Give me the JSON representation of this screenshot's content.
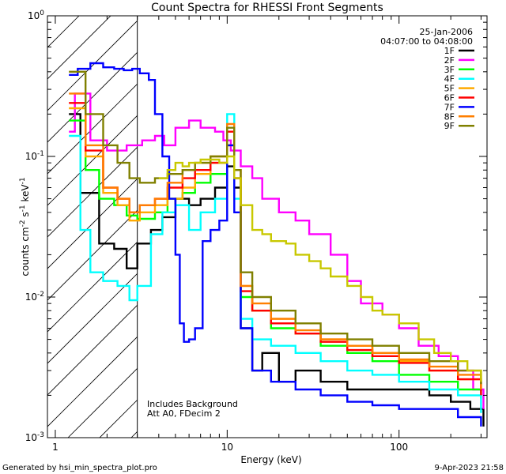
{
  "chart_data": {
    "type": "line",
    "title": "Count Spectra for RHESSI Front Segments",
    "xlabel": "Energy (keV)",
    "ylabel_parts": [
      "counts cm",
      "-2",
      " s",
      "-1",
      " keV",
      "-1"
    ],
    "x_scale": "log",
    "y_scale": "log",
    "xlim": [
      0.9,
      325
    ],
    "ylim": [
      0.001,
      1.0
    ],
    "x_ticks": [
      {
        "value": 1,
        "label": "1"
      },
      {
        "value": 10,
        "label": "10"
      },
      {
        "value": 100,
        "label": "100"
      }
    ],
    "y_ticks": [
      {
        "value": 1,
        "base": "10",
        "exp": "0"
      },
      {
        "value": 0.1,
        "base": "10",
        "exp": "-1"
      },
      {
        "value": 0.01,
        "base": "10",
        "exp": "-2"
      },
      {
        "value": 0.001,
        "base": "10",
        "exp": "-3"
      }
    ],
    "date": "25-Jan-2006",
    "time_range": "04:07:00 to 04:08:00",
    "hatched_region": {
      "x_from": 0.9,
      "x_to": 3.0
    },
    "annotations": [
      "Includes Background",
      "Att A0, FDecim 2"
    ],
    "footer_left": "Generated by hsi_min_spectra_plot.pro",
    "footer_right": "9-Apr-2023 21:58",
    "series": [
      {
        "name": "1F",
        "color": "#000000",
        "points": [
          [
            1.2,
            0.2
          ],
          [
            1.4,
            0.055
          ],
          [
            1.8,
            0.024
          ],
          [
            2.2,
            0.022
          ],
          [
            2.6,
            0.016
          ],
          [
            3.0,
            0.024
          ],
          [
            3.6,
            0.03
          ],
          [
            4.2,
            0.037
          ],
          [
            5.0,
            0.05
          ],
          [
            6.0,
            0.045
          ],
          [
            7.0,
            0.05
          ],
          [
            8.5,
            0.06
          ],
          [
            10.0,
            0.085
          ],
          [
            11.0,
            0.06
          ],
          [
            12.0,
            0.006
          ],
          [
            14.0,
            0.003
          ],
          [
            16.0,
            0.004
          ],
          [
            20.0,
            0.0025
          ],
          [
            25.0,
            0.003
          ],
          [
            35.0,
            0.0025
          ],
          [
            50.0,
            0.0022
          ],
          [
            70.0,
            0.0022
          ],
          [
            100.0,
            0.0022
          ],
          [
            150.0,
            0.002
          ],
          [
            200.0,
            0.0018
          ],
          [
            260.0,
            0.0016
          ],
          [
            310.0,
            0.0012
          ]
        ]
      },
      {
        "name": "2F",
        "color": "#ff00ff",
        "points": [
          [
            1.2,
            0.15
          ],
          [
            1.3,
            0.28
          ],
          [
            1.6,
            0.13
          ],
          [
            2.0,
            0.11
          ],
          [
            2.6,
            0.12
          ],
          [
            3.2,
            0.13
          ],
          [
            3.8,
            0.14
          ],
          [
            4.3,
            0.12
          ],
          [
            5.0,
            0.16
          ],
          [
            6.0,
            0.18
          ],
          [
            7.0,
            0.16
          ],
          [
            8.5,
            0.15
          ],
          [
            9.5,
            0.13
          ],
          [
            10.5,
            0.11
          ],
          [
            12.0,
            0.085
          ],
          [
            14.0,
            0.07
          ],
          [
            16.0,
            0.05
          ],
          [
            20.0,
            0.04
          ],
          [
            25.0,
            0.035
          ],
          [
            30.0,
            0.028
          ],
          [
            40.0,
            0.02
          ],
          [
            50.0,
            0.013
          ],
          [
            60.0,
            0.009
          ],
          [
            80.0,
            0.0075
          ],
          [
            100.0,
            0.006
          ],
          [
            130.0,
            0.0045
          ],
          [
            170.0,
            0.0038
          ],
          [
            220.0,
            0.003
          ],
          [
            270.0,
            0.0022
          ],
          [
            310.0,
            0.0016
          ]
        ]
      },
      {
        "name": "3F",
        "color": "#00ff00",
        "points": [
          [
            1.2,
            0.18
          ],
          [
            1.5,
            0.08
          ],
          [
            1.8,
            0.05
          ],
          [
            2.2,
            0.045
          ],
          [
            2.6,
            0.038
          ],
          [
            3.0,
            0.036
          ],
          [
            3.8,
            0.04
          ],
          [
            4.5,
            0.05
          ],
          [
            5.5,
            0.055
          ],
          [
            6.5,
            0.065
          ],
          [
            8.0,
            0.075
          ],
          [
            10.0,
            0.12
          ],
          [
            11.0,
            0.07
          ],
          [
            12.0,
            0.01
          ],
          [
            14.0,
            0.008
          ],
          [
            18.0,
            0.006
          ],
          [
            25.0,
            0.0055
          ],
          [
            35.0,
            0.0045
          ],
          [
            50.0,
            0.004
          ],
          [
            70.0,
            0.0035
          ],
          [
            100.0,
            0.0028
          ],
          [
            150.0,
            0.0025
          ],
          [
            220.0,
            0.0022
          ],
          [
            300.0,
            0.0019
          ]
        ]
      },
      {
        "name": "4F",
        "color": "#00ffff",
        "points": [
          [
            1.2,
            0.14
          ],
          [
            1.4,
            0.03
          ],
          [
            1.6,
            0.015
          ],
          [
            1.9,
            0.013
          ],
          [
            2.3,
            0.012
          ],
          [
            2.7,
            0.0095
          ],
          [
            3.0,
            0.012
          ],
          [
            3.6,
            0.028
          ],
          [
            4.2,
            0.04
          ],
          [
            5.0,
            0.045
          ],
          [
            6.0,
            0.03
          ],
          [
            7.0,
            0.04
          ],
          [
            8.5,
            0.05
          ],
          [
            10.0,
            0.2
          ],
          [
            11.0,
            0.05
          ],
          [
            12.0,
            0.007
          ],
          [
            14.0,
            0.005
          ],
          [
            18.0,
            0.0045
          ],
          [
            25.0,
            0.004
          ],
          [
            35.0,
            0.0035
          ],
          [
            50.0,
            0.003
          ],
          [
            70.0,
            0.0028
          ],
          [
            100.0,
            0.0025
          ],
          [
            150.0,
            0.0022
          ],
          [
            220.0,
            0.002
          ],
          [
            300.0,
            0.0015
          ]
        ]
      },
      {
        "name": "5F",
        "color": "#ffaa00",
        "points": [
          [
            1.2,
            0.22
          ],
          [
            1.5,
            0.1
          ],
          [
            1.9,
            0.055
          ],
          [
            2.3,
            0.045
          ],
          [
            2.7,
            0.035
          ],
          [
            3.1,
            0.04
          ],
          [
            3.8,
            0.045
          ],
          [
            4.5,
            0.05
          ],
          [
            5.5,
            0.06
          ],
          [
            6.5,
            0.075
          ],
          [
            8.0,
            0.09
          ],
          [
            10.0,
            0.12
          ],
          [
            11.0,
            0.07
          ],
          [
            12.0,
            0.012
          ],
          [
            14.0,
            0.008
          ],
          [
            18.0,
            0.007
          ],
          [
            25.0,
            0.0055
          ],
          [
            35.0,
            0.005
          ],
          [
            50.0,
            0.0045
          ],
          [
            70.0,
            0.004
          ],
          [
            100.0,
            0.0035
          ],
          [
            150.0,
            0.003
          ],
          [
            220.0,
            0.0026
          ],
          [
            300.0,
            0.0022
          ]
        ]
      },
      {
        "name": "6F",
        "color": "#ff0000",
        "points": [
          [
            1.2,
            0.24
          ],
          [
            1.5,
            0.11
          ],
          [
            1.9,
            0.06
          ],
          [
            2.3,
            0.05
          ],
          [
            2.7,
            0.04
          ],
          [
            3.1,
            0.045
          ],
          [
            3.8,
            0.05
          ],
          [
            4.5,
            0.06
          ],
          [
            5.5,
            0.07
          ],
          [
            6.5,
            0.08
          ],
          [
            8.0,
            0.09
          ],
          [
            10.0,
            0.15
          ],
          [
            11.0,
            0.07
          ],
          [
            12.0,
            0.011
          ],
          [
            14.0,
            0.008
          ],
          [
            18.0,
            0.0065
          ],
          [
            25.0,
            0.0055
          ],
          [
            35.0,
            0.0048
          ],
          [
            50.0,
            0.0042
          ],
          [
            70.0,
            0.0038
          ],
          [
            100.0,
            0.0034
          ],
          [
            150.0,
            0.003
          ],
          [
            220.0,
            0.0026
          ],
          [
            300.0,
            0.002
          ]
        ]
      },
      {
        "name": "7F",
        "color": "#0000ff",
        "points": [
          [
            1.2,
            0.38
          ],
          [
            1.35,
            0.42
          ],
          [
            1.6,
            0.46
          ],
          [
            1.9,
            0.43
          ],
          [
            2.2,
            0.42
          ],
          [
            2.5,
            0.41
          ],
          [
            2.8,
            0.42
          ],
          [
            3.1,
            0.39
          ],
          [
            3.5,
            0.35
          ],
          [
            3.8,
            0.2
          ],
          [
            4.2,
            0.1
          ],
          [
            4.6,
            0.05
          ],
          [
            5.0,
            0.02
          ],
          [
            5.3,
            0.0065
          ],
          [
            5.6,
            0.0048
          ],
          [
            6.0,
            0.005
          ],
          [
            6.5,
            0.006
          ],
          [
            7.2,
            0.025
          ],
          [
            8.0,
            0.03
          ],
          [
            9.0,
            0.035
          ],
          [
            10.0,
            0.12
          ],
          [
            11.0,
            0.04
          ],
          [
            12.0,
            0.006
          ],
          [
            14.0,
            0.003
          ],
          [
            18.0,
            0.0025
          ],
          [
            25.0,
            0.0022
          ],
          [
            35.0,
            0.002
          ],
          [
            50.0,
            0.0018
          ],
          [
            70.0,
            0.0017
          ],
          [
            100.0,
            0.0016
          ],
          [
            150.0,
            0.0016
          ],
          [
            220.0,
            0.0014
          ],
          [
            300.0,
            0.0012
          ]
        ]
      },
      {
        "name": "8F",
        "color": "#ff7f00",
        "points": [
          [
            1.2,
            0.28
          ],
          [
            1.5,
            0.12
          ],
          [
            1.9,
            0.06
          ],
          [
            2.3,
            0.05
          ],
          [
            2.7,
            0.04
          ],
          [
            3.1,
            0.045
          ],
          [
            3.8,
            0.05
          ],
          [
            4.5,
            0.065
          ],
          [
            5.5,
            0.08
          ],
          [
            6.5,
            0.09
          ],
          [
            8.0,
            0.1
          ],
          [
            10.0,
            0.17
          ],
          [
            11.0,
            0.08
          ],
          [
            12.0,
            0.012
          ],
          [
            14.0,
            0.009
          ],
          [
            18.0,
            0.007
          ],
          [
            25.0,
            0.0058
          ],
          [
            35.0,
            0.005
          ],
          [
            50.0,
            0.0045
          ],
          [
            70.0,
            0.004
          ],
          [
            100.0,
            0.0036
          ],
          [
            150.0,
            0.0032
          ],
          [
            220.0,
            0.0028
          ],
          [
            300.0,
            0.0022
          ]
        ]
      },
      {
        "name": "9F",
        "color": "#808000",
        "points": [
          [
            1.2,
            0.4
          ],
          [
            1.5,
            0.2
          ],
          [
            1.9,
            0.12
          ],
          [
            2.3,
            0.09
          ],
          [
            2.7,
            0.07
          ],
          [
            3.1,
            0.065
          ],
          [
            3.8,
            0.07
          ],
          [
            4.5,
            0.075
          ],
          [
            5.5,
            0.08
          ],
          [
            6.5,
            0.09
          ],
          [
            8.0,
            0.1
          ],
          [
            10.0,
            0.16
          ],
          [
            11.0,
            0.08
          ],
          [
            12.0,
            0.015
          ],
          [
            14.0,
            0.01
          ],
          [
            18.0,
            0.008
          ],
          [
            25.0,
            0.0065
          ],
          [
            35.0,
            0.0055
          ],
          [
            50.0,
            0.005
          ],
          [
            70.0,
            0.0045
          ],
          [
            100.0,
            0.004
          ],
          [
            150.0,
            0.0035
          ],
          [
            220.0,
            0.003
          ],
          [
            300.0,
            0.0024
          ]
        ]
      }
    ],
    "overlay_series": [
      {
        "name": "yellow-overlay",
        "color": "#c8c800",
        "points": [
          [
            4.0,
            0.07
          ],
          [
            4.5,
            0.08
          ],
          [
            5.0,
            0.09
          ],
          [
            5.5,
            0.085
          ],
          [
            6.0,
            0.09
          ],
          [
            7.0,
            0.095
          ],
          [
            8.0,
            0.095
          ],
          [
            9.0,
            0.09
          ],
          [
            10.0,
            0.1
          ],
          [
            11.0,
            0.07
          ],
          [
            12.0,
            0.045
          ],
          [
            14.0,
            0.03
          ],
          [
            16.0,
            0.028
          ],
          [
            18.0,
            0.025
          ],
          [
            22.0,
            0.024
          ],
          [
            25.0,
            0.02
          ],
          [
            30.0,
            0.018
          ],
          [
            35.0,
            0.016
          ],
          [
            40.0,
            0.014
          ],
          [
            50.0,
            0.012
          ],
          [
            60.0,
            0.01
          ],
          [
            70.0,
            0.008
          ],
          [
            80.0,
            0.0075
          ],
          [
            100.0,
            0.0065
          ],
          [
            130.0,
            0.005
          ],
          [
            160.0,
            0.004
          ],
          [
            200.0,
            0.0035
          ],
          [
            250.0,
            0.003
          ],
          [
            300.0,
            0.0025
          ]
        ]
      }
    ]
  }
}
